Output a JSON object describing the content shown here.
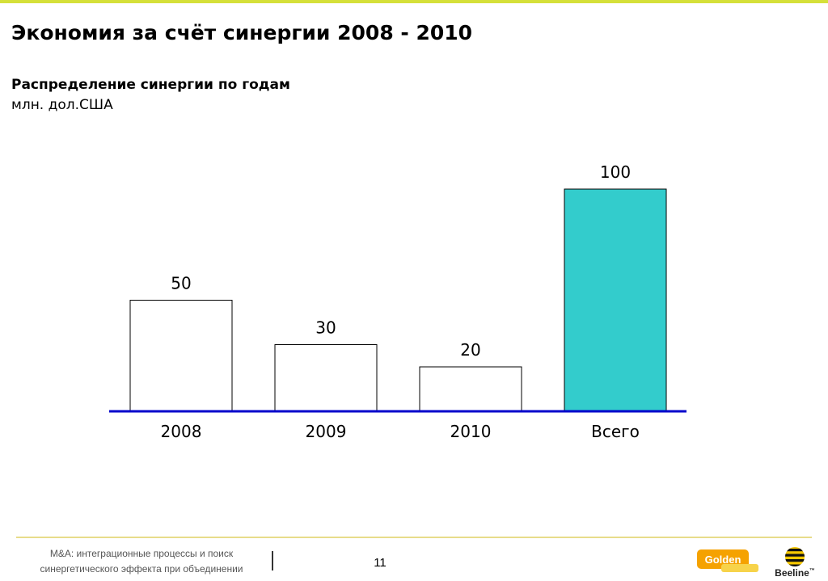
{
  "header": {
    "title": "Экономия за счёт синергии 2008 - 2010",
    "subtitle": "Распределение синергии по годам",
    "unit": "млн. дол.США"
  },
  "chart_data": {
    "type": "bar",
    "categories": [
      "2008",
      "2009",
      "2010",
      "Всего"
    ],
    "values": [
      50,
      30,
      20,
      100
    ],
    "colors": [
      "#ffffff",
      "#ffffff",
      "#ffffff",
      "#33cccc"
    ],
    "title": "Распределение синергии по годам",
    "ylabel": "млн. дол.США",
    "xlabel": "",
    "ylim": [
      0,
      100
    ],
    "grid": false,
    "axis_color": "#0000cc",
    "data_labels": [
      "50",
      "30",
      "20",
      "100"
    ]
  },
  "footer": {
    "line1": "M&A: интеграционные процессы и поиск",
    "line2": "синергетического эффекта при объединении",
    "page_number": "11",
    "logo_golden": "Golden",
    "logo_beeline": "Beeline",
    "logo_beeline_tm": "™"
  }
}
